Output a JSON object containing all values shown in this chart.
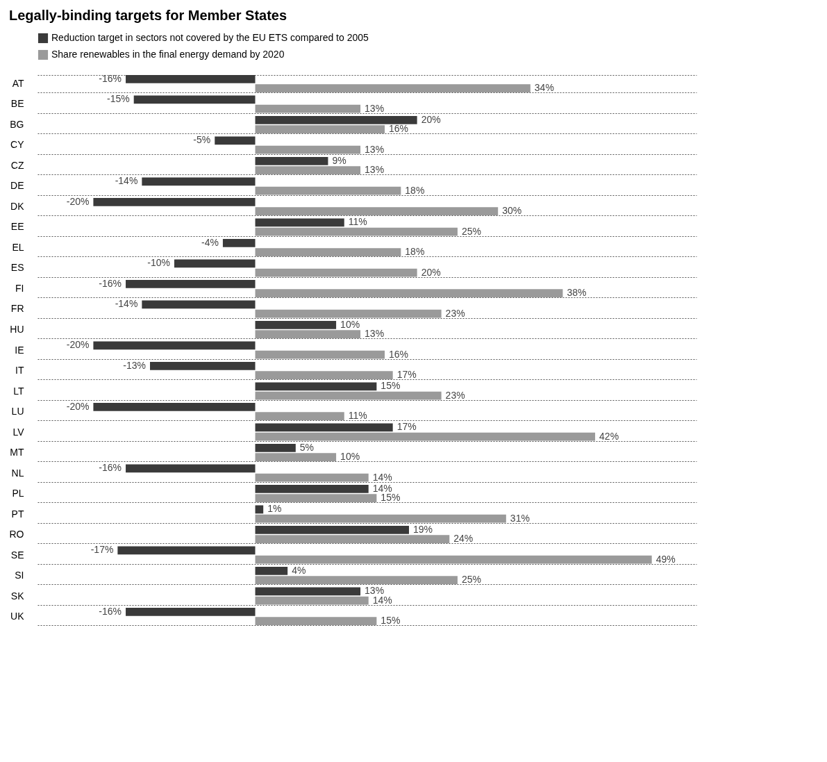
{
  "chart_data": {
    "type": "bar",
    "orientation": "horizontal",
    "title": "Legally-binding targets for Member States",
    "categories": [
      "AT",
      "BE",
      "BG",
      "CY",
      "CZ",
      "DE",
      "DK",
      "EE",
      "EL",
      "ES",
      "FI",
      "FR",
      "HU",
      "IE",
      "IT",
      "LT",
      "LU",
      "LV",
      "MT",
      "NL",
      "PL",
      "PT",
      "RO",
      "SE",
      "SI",
      "SK",
      "UK"
    ],
    "series": [
      {
        "name": "Reduction target in sectors not covered by the EU ETS compared to 2005",
        "color": "#3a3a3a",
        "values": [
          -16,
          -15,
          20,
          -5,
          9,
          -14,
          -20,
          11,
          -4,
          -10,
          -16,
          -14,
          10,
          -20,
          -13,
          15,
          -20,
          17,
          5,
          -16,
          14,
          1,
          19,
          -17,
          4,
          13,
          -16
        ],
        "value_labels": [
          "-16%",
          "-15%",
          "20%",
          "-5%",
          "9%",
          "-14%",
          "-20%",
          "11%",
          "-4%",
          "-10%",
          "-16%",
          "-14%",
          "10%",
          "-20%",
          "-13%",
          "15%",
          "-20%",
          "17%",
          "5%",
          "-16%",
          "14%",
          "1%",
          "19%",
          "-17%",
          "4%",
          "13%",
          "-16%"
        ]
      },
      {
        "name": "Share renewables in the final energy demand by 2020",
        "color": "#9a9a9a",
        "values": [
          34,
          13,
          16,
          13,
          13,
          18,
          30,
          25,
          18,
          20,
          38,
          23,
          13,
          16,
          17,
          23,
          11,
          42,
          10,
          14,
          15,
          31,
          24,
          49,
          25,
          14,
          15
        ],
        "value_labels": [
          "34%",
          "13%",
          "16%",
          "13%",
          "13%",
          "18%",
          "30%",
          "25%",
          "18%",
          "20%",
          "38%",
          "23%",
          "13%",
          "16%",
          "17%",
          "23%",
          "11%",
          "42%",
          "10%",
          "14%",
          "15%",
          "31%",
          "24%",
          "49%",
          "25%",
          "14%",
          "15%"
        ]
      }
    ],
    "legend": "top left",
    "grid": "y",
    "tick_labels": "y"
  }
}
